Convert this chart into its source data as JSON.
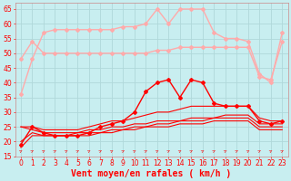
{
  "bg_color": "#c8eef0",
  "grid_color": "#aadddd",
  "line_color_dark": "#ff0000",
  "line_color_light": "#ffaaaa",
  "xlabel": "Vent moyen/en rafales ( km/h )",
  "xlim": [
    -0.5,
    23.5
  ],
  "ylim": [
    15,
    67
  ],
  "yticks": [
    15,
    20,
    25,
    30,
    35,
    40,
    45,
    50,
    55,
    60,
    65
  ],
  "xticks": [
    0,
    1,
    2,
    3,
    4,
    5,
    6,
    7,
    8,
    9,
    10,
    11,
    12,
    13,
    14,
    15,
    16,
    17,
    18,
    19,
    20,
    21,
    22,
    23
  ],
  "hours": [
    0,
    1,
    2,
    3,
    4,
    5,
    6,
    7,
    8,
    9,
    10,
    11,
    12,
    13,
    14,
    15,
    16,
    17,
    18,
    19,
    20,
    21,
    22,
    23
  ],
  "series_light": [
    {
      "color": "#ffaaaa",
      "lw": 1.0,
      "marker": "D",
      "markersize": 2.0,
      "data": [
        36,
        48,
        57,
        58,
        58,
        58,
        58,
        58,
        58,
        59,
        59,
        60,
        65,
        60,
        65,
        65,
        65,
        57,
        55,
        55,
        54,
        43,
        40,
        57
      ]
    },
    {
      "color": "#ffaaaa",
      "lw": 1.0,
      "marker": "D",
      "markersize": 2.0,
      "data": [
        48,
        54,
        50,
        50,
        50,
        50,
        50,
        50,
        50,
        50,
        50,
        50,
        51,
        51,
        52,
        52,
        52,
        52,
        52,
        52,
        52,
        42,
        41,
        54
      ]
    }
  ],
  "series_dark": [
    {
      "color": "#ff0000",
      "lw": 1.0,
      "marker": "D",
      "markersize": 2.0,
      "data": [
        19,
        25,
        23,
        22,
        22,
        22,
        23,
        25,
        26,
        27,
        30,
        37,
        40,
        41,
        35,
        41,
        40,
        33,
        32,
        32,
        32,
        27,
        26,
        27
      ]
    },
    {
      "color": "#ff0000",
      "lw": 0.8,
      "marker": null,
      "data": [
        25,
        25,
        24,
        24,
        24,
        24,
        25,
        26,
        27,
        27,
        28,
        29,
        30,
        30,
        31,
        32,
        32,
        32,
        32,
        32,
        32,
        28,
        27,
        27
      ]
    },
    {
      "color": "#ff0000",
      "lw": 0.8,
      "marker": null,
      "data": [
        25,
        24,
        23,
        23,
        23,
        23,
        24,
        24,
        25,
        25,
        26,
        26,
        27,
        27,
        27,
        28,
        28,
        28,
        29,
        29,
        29,
        26,
        26,
        26
      ]
    },
    {
      "color": "#ff0000",
      "lw": 0.8,
      "marker": null,
      "data": [
        20,
        23,
        22,
        22,
        22,
        23,
        23,
        23,
        24,
        24,
        25,
        25,
        26,
        26,
        27,
        27,
        27,
        28,
        28,
        28,
        28,
        25,
        25,
        25
      ]
    },
    {
      "color": "#ff0000",
      "lw": 0.8,
      "marker": null,
      "data": [
        18,
        22,
        22,
        22,
        22,
        22,
        22,
        23,
        23,
        24,
        24,
        25,
        25,
        25,
        26,
        26,
        26,
        27,
        27,
        27,
        27,
        24,
        24,
        24
      ]
    }
  ],
  "tick_label_fontsize": 5.5,
  "xlabel_fontsize": 7,
  "xlabel_color": "#ff0000"
}
